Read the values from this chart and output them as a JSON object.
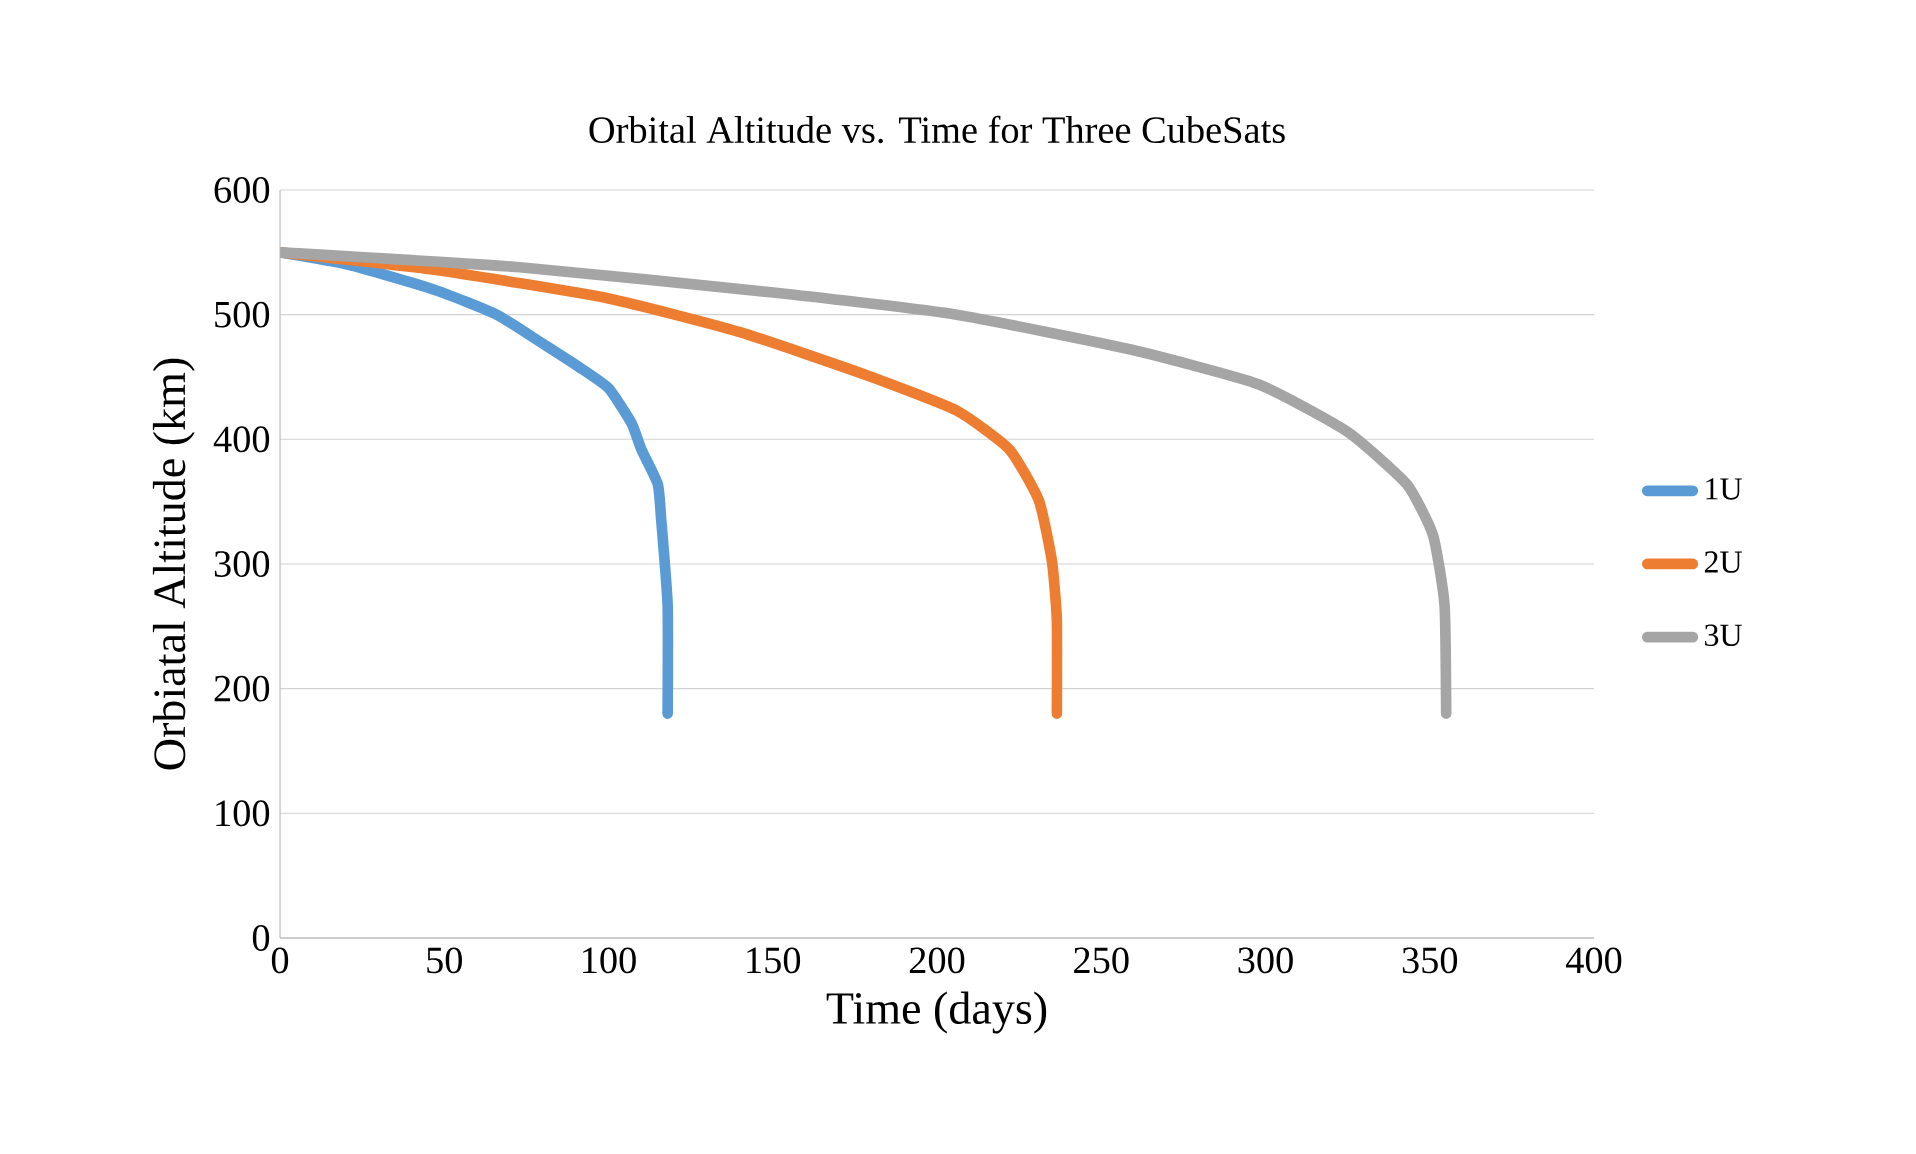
{
  "chart_data": {
    "type": "line",
    "title": "Orbital Altitude vs. Time for Three CubeSats",
    "xlabel": "Time (days)",
    "ylabel": "Orbiatal Altitude (km)",
    "xlim": [
      0,
      400
    ],
    "ylim": [
      0,
      600
    ],
    "xticks": [
      0,
      50,
      100,
      150,
      200,
      250,
      300,
      350,
      400
    ],
    "yticks": [
      0,
      100,
      200,
      300,
      400,
      500,
      600
    ],
    "grid": "y",
    "legend": "right",
    "marker": "none",
    "line_style": "solid",
    "series": [
      {
        "name": "1U",
        "color": "#5b9bd5",
        "x": [
          0,
          21,
          47,
          66,
          81,
          91,
          100,
          107,
          110,
          115,
          116,
          118,
          118
        ],
        "values": [
          550,
          540,
          520,
          500,
          475,
          458,
          441,
          413,
          392,
          364,
          337,
          267,
          180
        ]
      },
      {
        "name": "2U",
        "color": "#ed7d31",
        "x": [
          0,
          47,
          100,
          140,
          179,
          206,
          222,
          231,
          235,
          236.5,
          236.5
        ],
        "values": [
          550,
          536,
          513,
          486,
          451,
          423,
          392,
          351,
          302,
          254,
          180
        ]
      },
      {
        "name": "3U",
        "color": "#a5a5a5",
        "x": [
          0,
          73,
          153,
          206,
          259,
          298,
          325,
          343,
          351,
          354.5,
          355
        ],
        "values": [
          550,
          538,
          517,
          500,
          472,
          444,
          406,
          364,
          323,
          267,
          180
        ]
      }
    ]
  }
}
